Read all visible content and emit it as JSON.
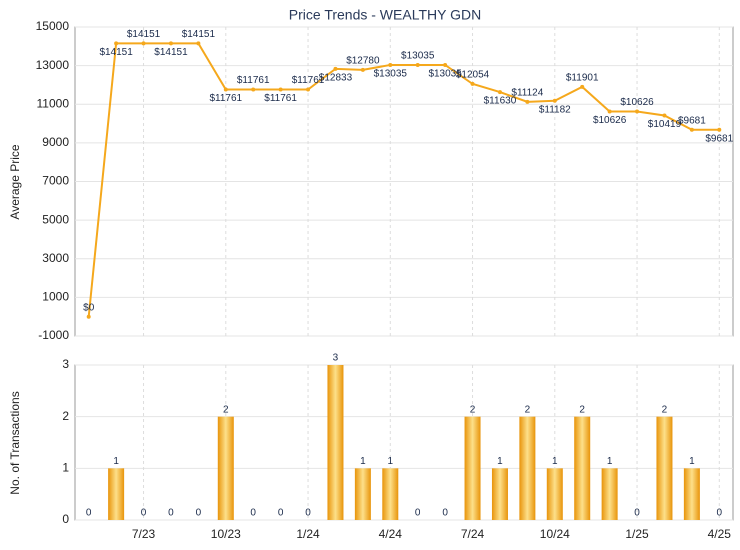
{
  "chart_data": [
    {
      "type": "line",
      "title": "Price Trends - WEALTHY GDN",
      "ylabel": "Average Price",
      "color": "#f5a81c",
      "values": [
        0,
        14151,
        14151,
        14151,
        14151,
        11761,
        11761,
        11761,
        11761,
        12833,
        12780,
        13035,
        13035,
        13035,
        12054,
        11630,
        11124,
        11182,
        11901,
        10626,
        10626,
        10419,
        9681,
        9681
      ],
      "value_labels": [
        "$0",
        "$14151",
        "$14151",
        "$14151",
        "$14151",
        "$11761",
        "$11761",
        "$11761",
        "$11761",
        "$12833",
        "$12780",
        "$13035",
        "$13035",
        "$13035",
        "$12054",
        "$11630",
        "$11124",
        "$11182",
        "$11901",
        "$10626",
        "$10626",
        "$10419",
        "$9681",
        "$9681"
      ],
      "ylim": [
        -1000,
        15000
      ],
      "yticks": [
        -1000,
        1000,
        3000,
        5000,
        7000,
        9000,
        11000,
        13000,
        15000
      ],
      "grid": true
    },
    {
      "type": "bar",
      "ylabel": "No. of Transactions",
      "color": "#f5a81c",
      "categories": [
        null,
        null,
        "7/23",
        null,
        null,
        "10/23",
        null,
        null,
        "1/24",
        null,
        null,
        "4/24",
        null,
        null,
        "7/24",
        null,
        null,
        "10/24",
        null,
        null,
        "1/25",
        null,
        null,
        "4/25"
      ],
      "values": [
        0,
        1,
        0,
        0,
        0,
        2,
        0,
        0,
        0,
        3,
        1,
        1,
        0,
        0,
        2,
        1,
        2,
        1,
        2,
        1,
        0,
        2,
        1,
        0
      ],
      "ylim": [
        0,
        3
      ],
      "yticks": [
        0,
        1,
        2,
        3
      ],
      "grid": true
    }
  ]
}
